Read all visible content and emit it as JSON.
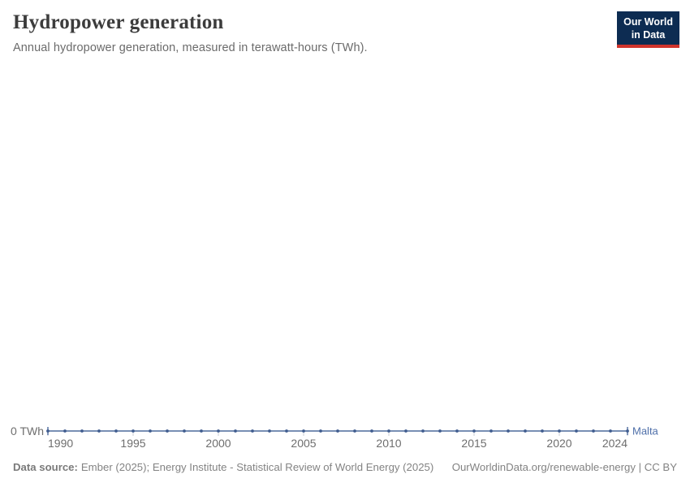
{
  "header": {
    "title": "Hydropower generation",
    "subtitle": "Annual hydropower generation, measured in terawatt-hours (TWh)."
  },
  "logo": {
    "line1": "Our World",
    "line2": "in Data"
  },
  "chart_data": {
    "type": "line",
    "title": "Hydropower generation",
    "subtitle": "Annual hydropower generation, measured in terawatt-hours (TWh).",
    "x": [
      1990,
      1991,
      1992,
      1993,
      1994,
      1995,
      1996,
      1997,
      1998,
      1999,
      2000,
      2001,
      2002,
      2003,
      2004,
      2005,
      2006,
      2007,
      2008,
      2009,
      2010,
      2011,
      2012,
      2013,
      2014,
      2015,
      2016,
      2017,
      2018,
      2019,
      2020,
      2021,
      2022,
      2023,
      2024
    ],
    "series": [
      {
        "name": "Malta",
        "values": [
          0,
          0,
          0,
          0,
          0,
          0,
          0,
          0,
          0,
          0,
          0,
          0,
          0,
          0,
          0,
          0,
          0,
          0,
          0,
          0,
          0,
          0,
          0,
          0,
          0,
          0,
          0,
          0,
          0,
          0,
          0,
          0,
          0,
          0,
          0
        ]
      }
    ],
    "x_ticks": [
      1990,
      1995,
      2000,
      2005,
      2010,
      2015,
      2020,
      2024
    ],
    "y_ticks": [
      {
        "value": 0,
        "label": "0 TWh"
      }
    ],
    "xlim": [
      1990,
      2024
    ],
    "ylim": [
      0,
      0
    ],
    "xlabel": "",
    "ylabel": "TWh",
    "grid": false,
    "legend_position": "end-of-line-label"
  },
  "footer": {
    "source_label": "Data source:",
    "source_text": "Ember (2025); Energy Institute - Statistical Review of World Energy (2025)",
    "link_text": "OurWorldinData.org/renewable-energy | CC BY"
  },
  "colors": {
    "line": "#4c6a9c",
    "marker": "#3f5c8f",
    "entity_label": "#4e6fa9",
    "axis_tick": "#c8ccd4",
    "logo_bg": "#0d2c52",
    "logo_accent": "#d0342c"
  }
}
